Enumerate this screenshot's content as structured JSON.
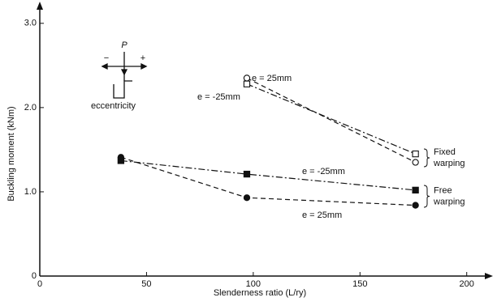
{
  "chart_data": {
    "type": "line",
    "xlabel": "Slenderness ratio (L/ry)",
    "ylabel": "Buckling moment (kNm)",
    "xlim": [
      0,
      210
    ],
    "xticks": [
      0,
      50,
      100,
      150,
      200
    ],
    "ylim": [
      0,
      3.2
    ],
    "yticks": [
      0,
      {
        "value": 1,
        "label": "1.0"
      },
      {
        "value": 2,
        "label": "2.0"
      },
      {
        "value": 3,
        "label": "3.0"
      }
    ],
    "series": [
      {
        "name": "e = 25mm",
        "color": "#111111",
        "marker": "open-circle",
        "dash": "dashed",
        "x": [
          97,
          176
        ],
        "values": [
          2.35,
          1.35
        ]
      },
      {
        "name": "e = -25mm",
        "color": "#111111",
        "marker": "open-square",
        "dash": "dashdot",
        "x": [
          97,
          176
        ],
        "values": [
          2.28,
          1.45
        ]
      },
      {
        "name": "e = -25mm",
        "color": "#111111",
        "marker": "filled-square",
        "dash": "dashdot",
        "x": [
          38,
          97,
          176
        ],
        "values": [
          1.37,
          1.21,
          1.02
        ]
      },
      {
        "name": "e = 25mm",
        "color": "#111111",
        "marker": "filled-circle",
        "dash": "dashed",
        "x": [
          38,
          97,
          176
        ],
        "values": [
          1.41,
          0.93,
          0.84
        ]
      }
    ],
    "groups": [
      {
        "lines": [
          "Fixed",
          "warping"
        ]
      },
      {
        "lines": [
          "Free",
          "warping"
        ]
      }
    ],
    "inset": {
      "load": "P",
      "minus": "−",
      "plus": "+",
      "label": "eccentricity"
    }
  }
}
